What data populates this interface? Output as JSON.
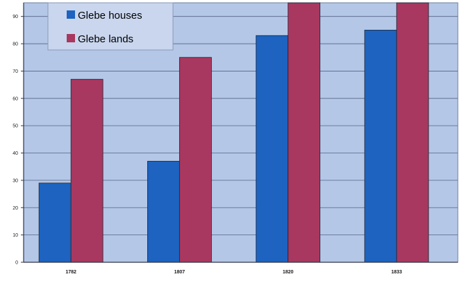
{
  "chart_data": {
    "type": "bar",
    "categories": [
      "1782",
      "1807",
      "1820",
      "1833"
    ],
    "series": [
      {
        "name": "Glebe houses",
        "values": [
          29,
          37,
          83,
          85
        ],
        "color": "#1d63bf"
      },
      {
        "name": "Glebe lands",
        "values": [
          67,
          75,
          95,
          95
        ],
        "color": "#a8385f"
      }
    ],
    "ylim": [
      0,
      95
    ],
    "yticks": [
      0,
      10,
      20,
      30,
      40,
      50,
      60,
      70,
      80,
      90
    ],
    "title": "",
    "xlabel": "",
    "ylabel": "",
    "grid": true,
    "legend": "top-left",
    "plot_background": "#b4c7e6"
  }
}
